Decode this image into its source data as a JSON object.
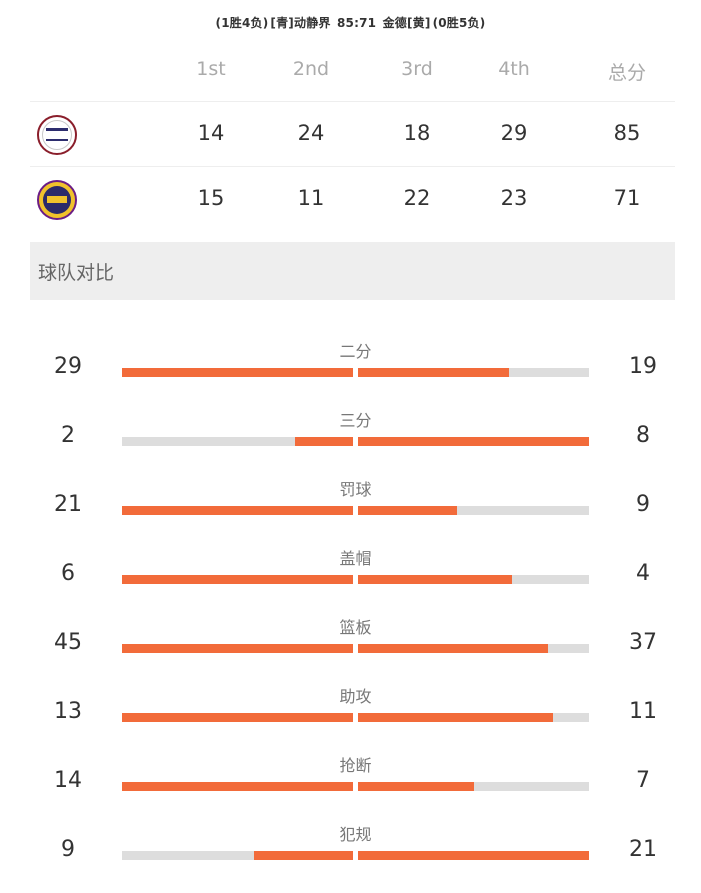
{
  "header": {
    "team_a_record": "(1胜4负)",
    "team_a_name": "[青]动静界",
    "score": "85:71",
    "team_b_name": "金德[黄]",
    "team_b_record": "(0胜5负)"
  },
  "quarters": {
    "headers": [
      "1st",
      "2nd",
      "3rd",
      "4th",
      "总分"
    ],
    "team_a": [
      "14",
      "24",
      "18",
      "29",
      "85"
    ],
    "team_b": [
      "15",
      "11",
      "22",
      "23",
      "71"
    ]
  },
  "section_title": "球队对比",
  "stats": [
    {
      "label": "二分",
      "left": "29",
      "right": "19",
      "left_ratio": 1.0,
      "right_ratio": 0.655
    },
    {
      "label": "三分",
      "left": "2",
      "right": "8",
      "left_ratio": 0.25,
      "right_ratio": 1.0
    },
    {
      "label": "罚球",
      "left": "21",
      "right": "9",
      "left_ratio": 1.0,
      "right_ratio": 0.429
    },
    {
      "label": "盖帽",
      "left": "6",
      "right": "4",
      "left_ratio": 1.0,
      "right_ratio": 0.667
    },
    {
      "label": "篮板",
      "left": "45",
      "right": "37",
      "left_ratio": 1.0,
      "right_ratio": 0.822
    },
    {
      "label": "助攻",
      "left": "13",
      "right": "11",
      "left_ratio": 1.0,
      "right_ratio": 0.846
    },
    {
      "label": "抢断",
      "left": "14",
      "right": "7",
      "left_ratio": 1.0,
      "right_ratio": 0.5
    },
    {
      "label": "犯规",
      "left": "9",
      "right": "21",
      "left_ratio": 0.429,
      "right_ratio": 1.0
    }
  ],
  "colors": {
    "bar_fill": "#f26b3a",
    "bar_track": "#dddddd",
    "section_bg": "#eeeeee"
  },
  "icons": {
    "team_a_logo": "team-a-logo-icon",
    "team_b_logo": "team-b-logo-icon"
  }
}
